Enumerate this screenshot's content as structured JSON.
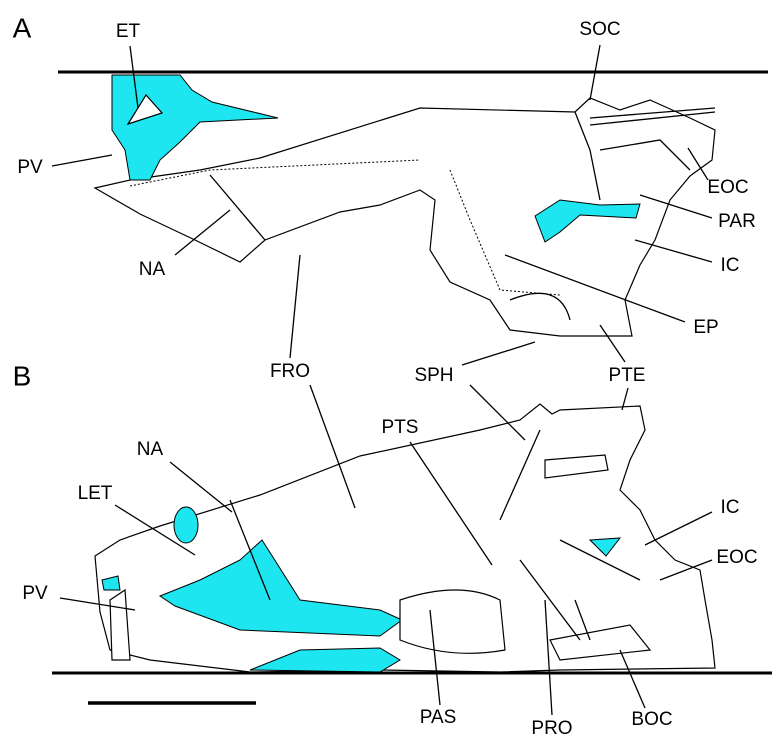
{
  "panel_a": {
    "letter": "A",
    "labels": [
      "ET",
      "SOC",
      "PV",
      "EOC",
      "PAR",
      "NA",
      "IC",
      "EP"
    ]
  },
  "shared_labels": [
    "FRO",
    "SPH",
    "PTE"
  ],
  "panel_b": {
    "letter": "B",
    "labels": [
      "PTS",
      "NA",
      "LET",
      "IC",
      "EOC",
      "PV",
      "PAS",
      "PRO",
      "BOC"
    ]
  }
}
